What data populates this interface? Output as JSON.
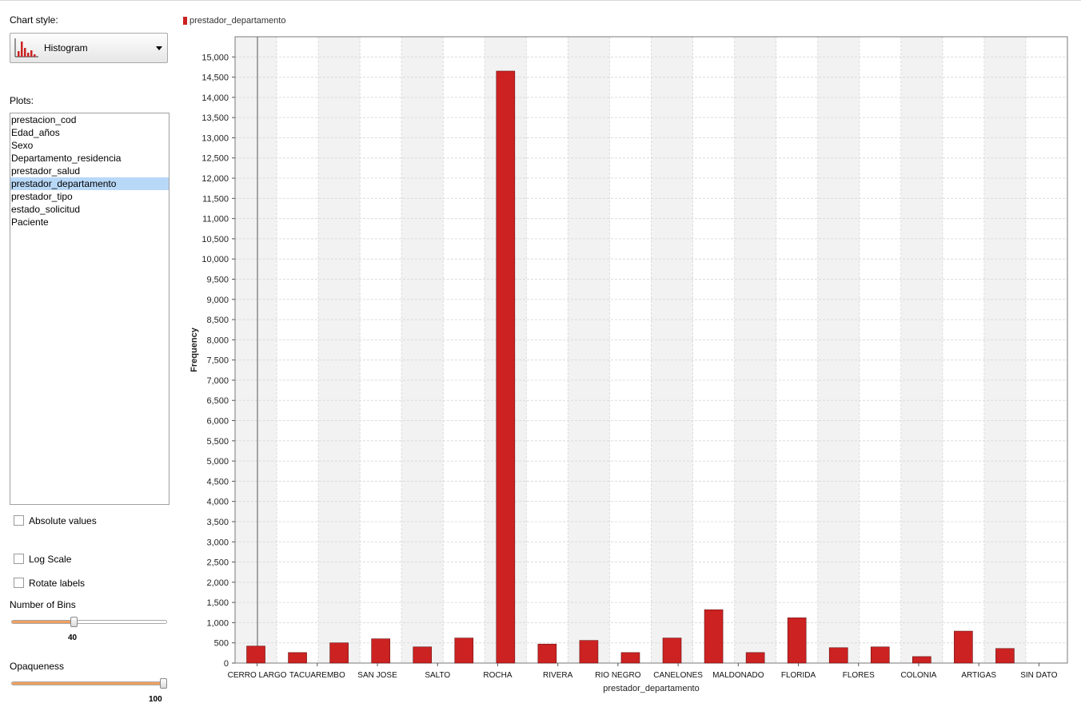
{
  "sidebar": {
    "chart_style_label": "Chart style:",
    "chart_style_value": "Histogram",
    "plots_label": "Plots:",
    "plots": [
      {
        "label": "prestacion_cod",
        "selected": false
      },
      {
        "label": "Edad_años",
        "selected": false
      },
      {
        "label": "Sexo",
        "selected": false
      },
      {
        "label": "Departamento_residencia",
        "selected": false
      },
      {
        "label": "prestador_salud",
        "selected": false
      },
      {
        "label": "prestador_departamento",
        "selected": true
      },
      {
        "label": "prestador_tipo",
        "selected": false
      },
      {
        "label": "estado_solicitud",
        "selected": false
      },
      {
        "label": "Paciente",
        "selected": false
      }
    ],
    "absolute_values_label": "Absolute values",
    "absolute_values_checked": false,
    "log_scale_label": "Log Scale",
    "log_scale_checked": false,
    "rotate_labels_label": "Rotate labels",
    "rotate_labels_checked": false,
    "bins_label": "Number of Bins",
    "bins_value": "40",
    "bins_fraction": 0.4,
    "opaqueness_label": "Opaqueness",
    "opaqueness_value": "100",
    "opaqueness_fraction": 1.0
  },
  "colors": {
    "bar": "#cc2222",
    "band": "#f2f2f2",
    "accent": "#f0a060"
  },
  "chart_data": {
    "type": "bar",
    "legend": "prestador_departamento",
    "legend_position": "top-left",
    "xlabel": "prestador_departamento",
    "ylabel": "Frequency",
    "ylim": [
      0,
      15500
    ],
    "yticks": [
      0,
      500,
      1000,
      1500,
      2000,
      2500,
      3000,
      3500,
      4000,
      4500,
      5000,
      5500,
      6000,
      6500,
      7000,
      7500,
      8000,
      8500,
      9000,
      9500,
      10000,
      10500,
      11000,
      11500,
      12000,
      12500,
      13000,
      13500,
      14000,
      14500,
      15000
    ],
    "ytick_labels": [
      "0",
      "500",
      "1,000",
      "1,500",
      "2,000",
      "2,500",
      "3,000",
      "3,500",
      "4,000",
      "4,500",
      "5,000",
      "5,500",
      "6,000",
      "6,500",
      "7,000",
      "7,500",
      "8,000",
      "8,500",
      "9,000",
      "9,500",
      "10,000",
      "10,500",
      "11,000",
      "11,500",
      "12,000",
      "12,500",
      "13,000",
      "13,500",
      "14,000",
      "14,500",
      "15,000"
    ],
    "grid": true,
    "category_labels": [
      "CERRO LARGO",
      "TACUAREMBO",
      "SAN JOSE",
      "SALTO",
      "ROCHA",
      "RIVERA",
      "RIO NEGRO",
      "CANELONES",
      "MALDONADO",
      "FLORIDA",
      "FLORES",
      "COLONIA",
      "ARTIGAS",
      "SIN DATO"
    ],
    "series": [
      {
        "name": "prestador_departamento",
        "values": [
          420,
          260,
          500,
          600,
          400,
          620,
          14650,
          470,
          560,
          260,
          620,
          1320,
          260,
          1120,
          380,
          400,
          160,
          790,
          360,
          0
        ]
      }
    ]
  }
}
